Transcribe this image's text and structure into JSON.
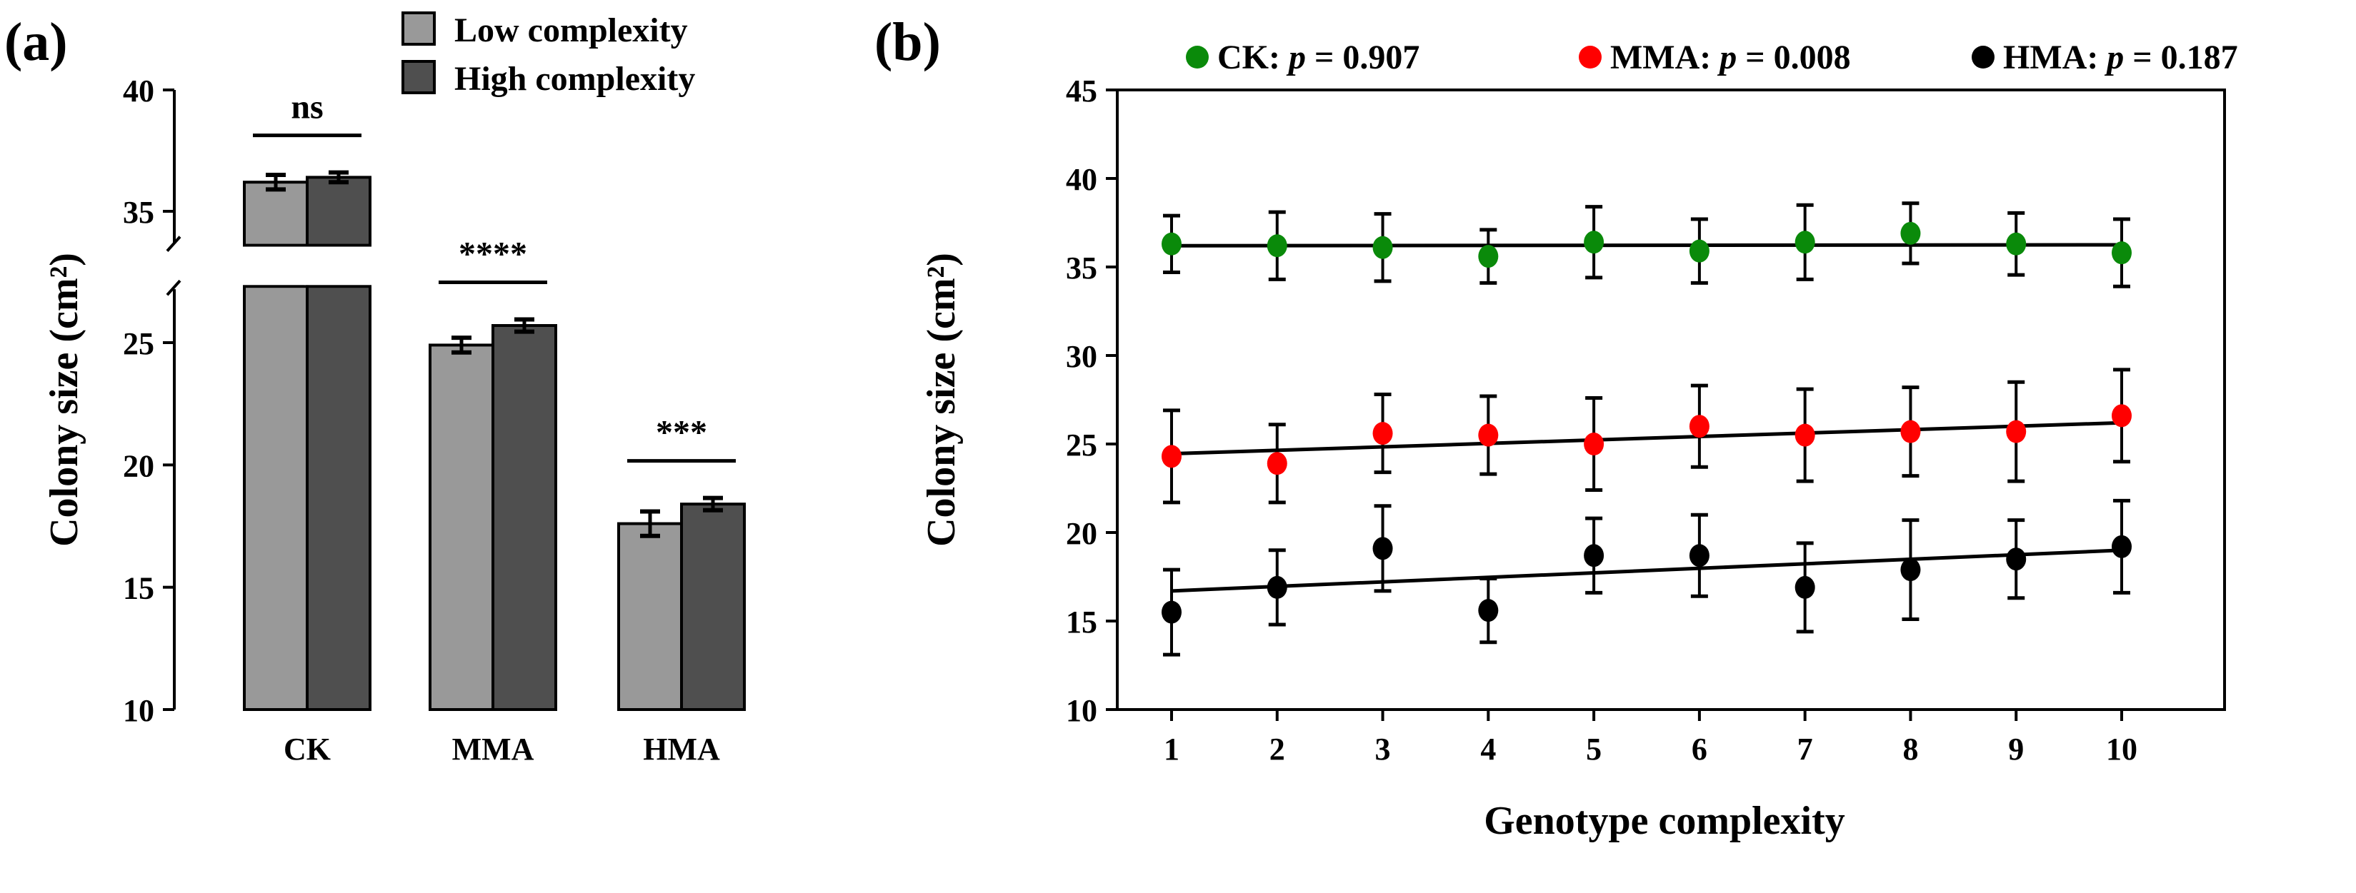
{
  "chart_data": [
    {
      "panel": "(a)",
      "type": "bar",
      "ylabel": "Colony size (cm²)",
      "xlabel": "",
      "categories": [
        "CK",
        "MMA",
        "HMA"
      ],
      "ylim": [
        10,
        40
      ],
      "axis_break": [
        27.3,
        33.6
      ],
      "yticks": [
        10,
        15,
        20,
        25,
        35,
        40
      ],
      "legend_position": "top-right",
      "series": [
        {
          "name": "Low complexity",
          "color": "#999999",
          "values": [
            36.2,
            24.9,
            17.6
          ],
          "errors": [
            0.3,
            0.3,
            0.5
          ]
        },
        {
          "name": "High complexity",
          "color": "#4f4f4f",
          "values": [
            36.4,
            25.7,
            18.4
          ],
          "errors": [
            0.2,
            0.25,
            0.25
          ]
        }
      ],
      "significance": [
        "ns",
        "****",
        "***"
      ]
    },
    {
      "panel": "(b)",
      "type": "scatter",
      "xlabel": "Genotype complexity",
      "ylabel": "Colony size (cm²)",
      "x": [
        1,
        2,
        3,
        4,
        5,
        6,
        7,
        8,
        9,
        10
      ],
      "xlim": [
        0.5,
        11
      ],
      "ylim": [
        10,
        45
      ],
      "yticks": [
        10,
        15,
        20,
        25,
        30,
        35,
        40,
        45
      ],
      "legend_position": "top",
      "series": [
        {
          "name": "CK",
          "p_label": "p",
          "p_value": "= 0.907",
          "color": "#0a8a0a",
          "values": [
            36.3,
            36.2,
            36.1,
            35.6,
            36.4,
            35.9,
            36.4,
            36.9,
            36.3,
            35.8
          ],
          "errors": [
            1.6,
            1.9,
            1.9,
            1.5,
            2.0,
            1.8,
            2.1,
            1.7,
            1.75,
            1.9
          ],
          "fit": [
            36.2,
            36.25
          ]
        },
        {
          "name": "MMA",
          "p_label": "p",
          "p_value": "= 0.008",
          "color": "#ff0000",
          "values": [
            24.3,
            23.9,
            25.6,
            25.5,
            25.0,
            26.0,
            25.5,
            25.7,
            25.7,
            26.6
          ],
          "errors": [
            2.6,
            2.2,
            2.2,
            2.2,
            2.6,
            2.3,
            2.6,
            2.5,
            2.8,
            2.6
          ],
          "fit": [
            24.45,
            26.2
          ]
        },
        {
          "name": "HMA",
          "p_label": "p",
          "p_value": "= 0.187",
          "color": "#000000",
          "values": [
            15.5,
            16.9,
            19.1,
            15.6,
            18.7,
            18.7,
            16.9,
            17.9,
            18.5,
            19.2
          ],
          "errors": [
            2.4,
            2.1,
            2.4,
            1.8,
            2.1,
            2.3,
            2.5,
            2.8,
            2.2,
            2.6
          ],
          "fit": [
            16.7,
            19.0
          ]
        }
      ]
    }
  ]
}
